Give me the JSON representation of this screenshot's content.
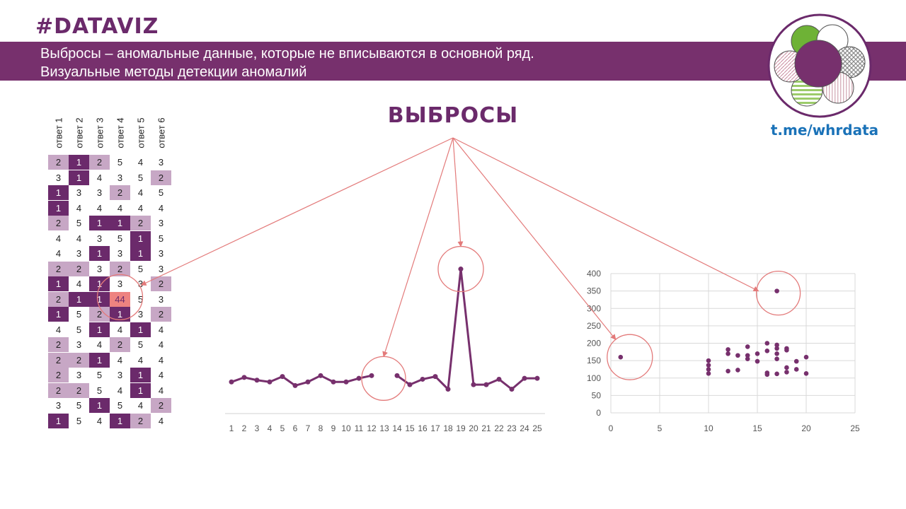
{
  "header": {
    "hashtag": "#DATAVIZ",
    "line1": "Выбросы – аномальные данные, которые не вписываются в основной ряд.",
    "line2": "Визуальные методы детекции аномалий",
    "link": "t.me/whrdata"
  },
  "main_title": "ВЫБРОСЫ",
  "colors": {
    "purple": "#77306d",
    "light_purple": "#c7a7c5",
    "highlight": "#ee8380",
    "arrow": "#e37a7a",
    "link": "#1a72b8"
  },
  "icons": [
    "flower-logo-icon"
  ],
  "chart_data": [
    {
      "type": "table",
      "columns": [
        "ответ 1",
        "ответ 2",
        "ответ 3",
        "ответ 4",
        "ответ 5",
        "ответ 6"
      ],
      "rows": [
        [
          "2",
          "1",
          "2",
          "5",
          "4",
          "3"
        ],
        [
          "3",
          "1",
          "4",
          "3",
          "5",
          "2"
        ],
        [
          "1",
          "3",
          "3",
          "2",
          "4",
          "5"
        ],
        [
          "1",
          "4",
          "4",
          "4",
          "4",
          "4"
        ],
        [
          "2",
          "5",
          "1",
          "1",
          "2",
          "3"
        ],
        [
          "4",
          "4",
          "3",
          "5",
          "1",
          "5"
        ],
        [
          "4",
          "3",
          "1",
          "3",
          "1",
          "3"
        ],
        [
          "2",
          "2",
          "3",
          "2",
          "5",
          "3"
        ],
        [
          "1",
          "4",
          "1",
          "3",
          "3",
          "2"
        ],
        [
          "2",
          "1",
          "1",
          "44",
          "5",
          "3"
        ],
        [
          "1",
          "5",
          "2",
          "1",
          "3",
          "2"
        ],
        [
          "4",
          "5",
          "1",
          "4",
          "1",
          "4"
        ],
        [
          "2",
          "3",
          "4",
          "2",
          "5",
          "4"
        ],
        [
          "2",
          "2",
          "1",
          "4",
          "4",
          "4"
        ],
        [
          "2",
          "3",
          "5",
          "3",
          "1",
          "4"
        ],
        [
          "2",
          "2",
          "5",
          "4",
          "1",
          "4"
        ],
        [
          "3",
          "5",
          "1",
          "5",
          "4",
          "2"
        ],
        [
          "1",
          "5",
          "4",
          "1",
          "2",
          "4"
        ]
      ],
      "value_colors": {
        "1": "#6b2a6b",
        "2": "#c7a7c5"
      },
      "outlier": {
        "row": 9,
        "col": 3,
        "value": "44"
      }
    },
    {
      "type": "line",
      "x": [
        1,
        2,
        3,
        4,
        5,
        6,
        7,
        8,
        9,
        10,
        11,
        12,
        13,
        14,
        15,
        16,
        17,
        18,
        19,
        20,
        21,
        22,
        23,
        24,
        25
      ],
      "values": [
        35,
        40,
        37,
        35,
        41,
        31,
        35,
        42,
        35,
        35,
        39,
        42,
        null,
        42,
        32,
        38,
        41,
        27,
        160,
        32,
        32,
        38,
        27,
        39,
        39
      ],
      "ylim": [
        0,
        180
      ],
      "outliers": [
        13,
        19
      ]
    },
    {
      "type": "scatter",
      "points": [
        [
          1,
          160
        ],
        [
          10,
          150
        ],
        [
          10,
          137
        ],
        [
          10,
          125
        ],
        [
          10,
          113
        ],
        [
          12,
          182
        ],
        [
          12,
          170
        ],
        [
          12,
          120
        ],
        [
          13,
          165
        ],
        [
          13,
          123
        ],
        [
          14,
          190
        ],
        [
          14,
          165
        ],
        [
          14,
          155
        ],
        [
          15,
          170
        ],
        [
          15,
          148
        ],
        [
          16,
          200
        ],
        [
          16,
          178
        ],
        [
          16,
          115
        ],
        [
          16,
          110
        ],
        [
          17,
          350
        ],
        [
          17,
          195
        ],
        [
          17,
          185
        ],
        [
          17,
          170
        ],
        [
          17,
          155
        ],
        [
          17,
          112
        ],
        [
          18,
          185
        ],
        [
          18,
          180
        ],
        [
          18,
          130
        ],
        [
          18,
          117
        ],
        [
          19,
          148
        ],
        [
          19,
          125
        ],
        [
          20,
          160
        ],
        [
          20,
          113
        ]
      ],
      "xlim": [
        0,
        25
      ],
      "ylim": [
        0,
        400
      ],
      "xticks": [
        "0",
        "5",
        "10",
        "15",
        "20",
        "25"
      ],
      "yticks": [
        "0",
        "50",
        "100",
        "150",
        "200",
        "250",
        "300",
        "350",
        "400"
      ],
      "outliers": [
        [
          1,
          160
        ],
        [
          17,
          350
        ]
      ],
      "grid": true
    }
  ]
}
